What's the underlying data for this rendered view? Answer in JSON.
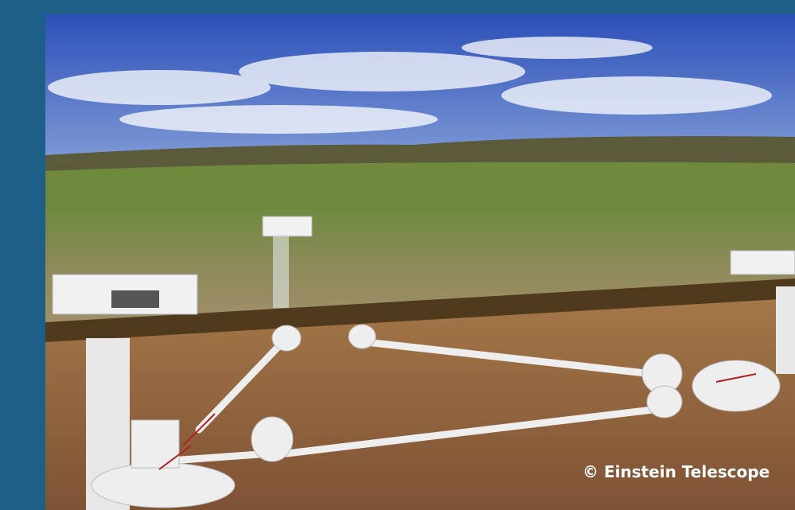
{
  "caption": "© Einstein Telescope"
}
